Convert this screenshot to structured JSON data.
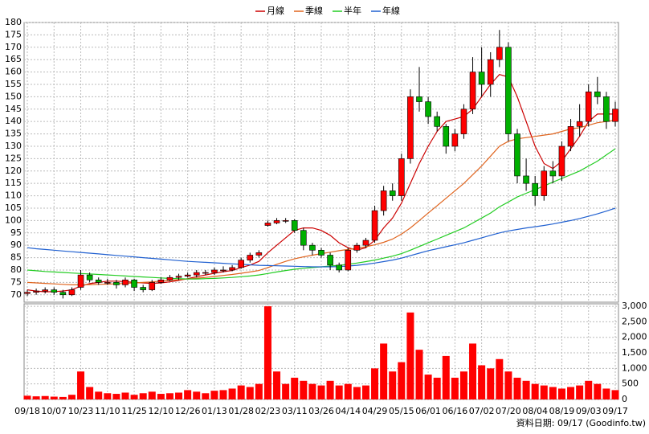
{
  "chart_data": [
    {
      "type": "candlestick",
      "up_color": "#ff0000",
      "down_color": "#00b000",
      "open": [
        70.5,
        71,
        71.5,
        72,
        71,
        70,
        73,
        78,
        76,
        75,
        75,
        74,
        76,
        73,
        72,
        75,
        76,
        77,
        77.5,
        78,
        79,
        79,
        80,
        80,
        81,
        84,
        86,
        98,
        99,
        100,
        100,
        96,
        90,
        88,
        86,
        82,
        80,
        88,
        90,
        92,
        104,
        112,
        110,
        125,
        150,
        148,
        142,
        138,
        130,
        135,
        145,
        160,
        155,
        165,
        170,
        135,
        118,
        115,
        110,
        120,
        118,
        130,
        138,
        140,
        152,
        150,
        140
      ],
      "high": [
        72,
        72.5,
        73,
        73,
        72,
        73,
        80,
        79,
        77,
        76.5,
        76,
        77,
        76.5,
        74,
        76,
        77,
        78,
        78.5,
        79,
        80,
        80,
        81,
        81.5,
        82,
        85,
        87,
        88,
        100,
        101,
        101,
        100.5,
        97,
        91,
        89,
        87,
        83,
        89,
        91,
        93,
        106,
        114,
        115,
        127,
        153,
        162,
        150,
        144,
        139,
        137,
        147,
        166,
        170,
        168,
        177,
        172,
        137,
        125,
        118,
        122,
        124,
        132,
        141,
        147,
        155,
        158,
        152,
        148
      ],
      "low": [
        69.5,
        70,
        70.5,
        70,
        68.5,
        69.5,
        72,
        75,
        74,
        74,
        72.5,
        73,
        71.5,
        71,
        71.5,
        74.5,
        75.5,
        76,
        77,
        77,
        78,
        78,
        79,
        79.5,
        80.5,
        83,
        85,
        97.5,
        98.5,
        99,
        95,
        88,
        86,
        85,
        80,
        79,
        79.5,
        87,
        89,
        91,
        102,
        108,
        108,
        123,
        144,
        139,
        136,
        127,
        128,
        133,
        143,
        150,
        150,
        162,
        132,
        115,
        112,
        106,
        108,
        115,
        116,
        128,
        134,
        138,
        147,
        137,
        138
      ],
      "close": [
        71,
        71.5,
        72,
        71,
        70,
        72,
        78,
        76,
        75,
        75,
        74,
        76,
        73,
        72,
        75,
        76,
        77,
        77.5,
        78,
        79,
        79,
        80,
        80,
        81,
        84,
        86,
        87,
        99,
        100,
        100,
        96,
        90,
        88,
        86,
        82,
        80,
        88,
        90,
        92,
        104,
        112,
        110,
        125,
        150,
        148,
        142,
        138,
        130,
        135,
        145,
        160,
        155,
        165,
        170,
        135,
        118,
        115,
        110,
        120,
        118,
        130,
        138,
        140,
        152,
        150,
        140,
        145
      ],
      "ylim": [
        67,
        180
      ],
      "yticks": [
        70,
        75,
        80,
        85,
        90,
        95,
        100,
        105,
        110,
        115,
        120,
        125,
        130,
        135,
        140,
        145,
        150,
        155,
        160,
        165,
        170,
        175,
        180
      ],
      "grid": true,
      "series": [
        {
          "name": "月線",
          "color": "#cc0000",
          "values": [
            72,
            71.5,
            71.2,
            71.3,
            71.5,
            72,
            73.5,
            74.5,
            75,
            75.5,
            75.5,
            75.3,
            75,
            74.8,
            74.6,
            74.8,
            75.2,
            75.8,
            76.5,
            77.3,
            78,
            78.7,
            79.3,
            79.8,
            81,
            82,
            83.5,
            87,
            90,
            93,
            96,
            97,
            97,
            96,
            94,
            91,
            89,
            88,
            89,
            92,
            97,
            101,
            107,
            115,
            123,
            130,
            136,
            140,
            141,
            142,
            145,
            150,
            155,
            159,
            158,
            150,
            140,
            130,
            123,
            121,
            124,
            129,
            134,
            140,
            143,
            143,
            143
          ]
        },
        {
          "name": "季線",
          "color": "#e0641e",
          "values": [
            75,
            74.8,
            74.6,
            74.4,
            74.2,
            74,
            74,
            74.1,
            74.2,
            74.3,
            74.4,
            74.6,
            74.8,
            75,
            75.2,
            75.5,
            75.8,
            76.1,
            76.4,
            76.7,
            77,
            77.4,
            77.8,
            78.2,
            78.7,
            79.2,
            79.8,
            81,
            82.3,
            83.5,
            84.5,
            85.3,
            86,
            86.6,
            87.2,
            87.8,
            88.3,
            88.8,
            89.4,
            90.2,
            91.2,
            92.5,
            94.5,
            97,
            100,
            103,
            106,
            109,
            112,
            115,
            118.5,
            122,
            126,
            130,
            132,
            133,
            133.5,
            134,
            134.5,
            135,
            136,
            137,
            137.5,
            138.5,
            139.5,
            140,
            140.5
          ]
        },
        {
          "name": "半年",
          "color": "#22cc22",
          "values": [
            80,
            79.7,
            79.4,
            79.2,
            79,
            78.8,
            78.6,
            78.4,
            78.2,
            78,
            77.8,
            77.6,
            77.4,
            77.2,
            77,
            76.8,
            76.6,
            76.5,
            76.4,
            76.4,
            76.5,
            76.6,
            76.8,
            77,
            77.3,
            77.6,
            78,
            78.6,
            79.2,
            79.8,
            80.3,
            80.7,
            81,
            81.3,
            81.6,
            81.9,
            82.3,
            82.8,
            83.4,
            84,
            84.8,
            85.6,
            86.6,
            88,
            89.5,
            91,
            92.5,
            94,
            95.5,
            97,
            99,
            101,
            103,
            105.5,
            107.5,
            109.5,
            111,
            112.5,
            114,
            115.5,
            117,
            118.5,
            120,
            122,
            124,
            126.5,
            129
          ]
        },
        {
          "name": "年線",
          "color": "#2060d0",
          "values": [
            89,
            88.6,
            88.3,
            88,
            87.7,
            87.4,
            87.1,
            86.8,
            86.5,
            86.2,
            85.9,
            85.6,
            85.3,
            85,
            84.7,
            84.4,
            84.1,
            83.8,
            83.5,
            83.3,
            83.1,
            82.9,
            82.7,
            82.5,
            82.3,
            82.1,
            81.9,
            81.8,
            81.7,
            81.6,
            81.5,
            81.4,
            81.3,
            81.3,
            81.3,
            81.4,
            81.6,
            81.9,
            82.3,
            82.8,
            83.4,
            84,
            84.8,
            85.8,
            86.8,
            87.8,
            88.6,
            89.4,
            90.2,
            91,
            92,
            93,
            94,
            95,
            95.8,
            96.4,
            97,
            97.5,
            98,
            98.6,
            99.3,
            100,
            100.8,
            101.7,
            102.7,
            103.8,
            105
          ]
        }
      ]
    },
    {
      "type": "bar",
      "color": "#ff0000",
      "categories": [
        "09/18",
        null,
        null,
        "10/07",
        null,
        null,
        "10/23",
        null,
        null,
        "11/10",
        null,
        null,
        "11/25",
        null,
        null,
        "12/10",
        null,
        null,
        "12/26",
        null,
        null,
        "01/13",
        null,
        null,
        "01/28",
        null,
        null,
        "02/23",
        null,
        null,
        "03/11",
        null,
        null,
        "03/26",
        null,
        null,
        "04/14",
        null,
        null,
        "04/29",
        null,
        null,
        "05/15",
        null,
        null,
        "06/01",
        null,
        null,
        "06/16",
        null,
        null,
        "07/02",
        null,
        null,
        "07/20",
        null,
        null,
        "08/04",
        null,
        null,
        "08/19",
        null,
        null,
        "09/03",
        null,
        null,
        "09/17"
      ],
      "values": [
        120,
        100,
        110,
        90,
        80,
        150,
        900,
        400,
        250,
        200,
        180,
        220,
        150,
        200,
        250,
        180,
        200,
        220,
        300,
        250,
        200,
        280,
        300,
        350,
        450,
        400,
        500,
        3000,
        900,
        500,
        700,
        600,
        500,
        450,
        600,
        450,
        500,
        400,
        450,
        1000,
        1800,
        900,
        1200,
        2800,
        1600,
        800,
        700,
        1400,
        700,
        900,
        1800,
        1100,
        1000,
        1300,
        900,
        700,
        600,
        500,
        450,
        400,
        350,
        400,
        450,
        600,
        500,
        350,
        300
      ],
      "ylim": [
        0,
        3080
      ],
      "yticks": [
        0,
        500,
        {
          "value": 1000,
          "label": "1,000"
        },
        {
          "value": 1500,
          "label": "1,500"
        },
        {
          "value": 2000,
          "label": "2,000"
        },
        {
          "value": 2500,
          "label": "2,500"
        },
        {
          "value": 3000,
          "label": "3,000"
        }
      ],
      "grid": true,
      "annotation": "資料日期: 09/17  (Goodinfo.tw)"
    }
  ]
}
